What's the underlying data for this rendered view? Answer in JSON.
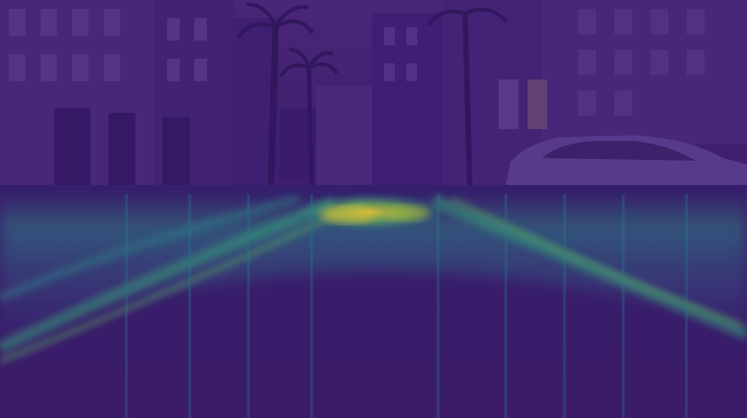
{
  "image": {
    "kind": "street-scene-attention-heatmap-overlay",
    "colormap": "viridis",
    "colors": {
      "base_dark": "#3b1a6b",
      "base_mid": "#4a2a7a",
      "sky": "#5a3c8a",
      "road": "#3a1f66",
      "heat_low": "#3b528b",
      "heat_mid": "#21918c",
      "heat_high": "#5ec962",
      "heat_peak": "#fde725"
    },
    "objects": [
      "buildings-left",
      "palm-trees",
      "buildings-right",
      "parked-car-right",
      "road",
      "lane-heatmap"
    ]
  }
}
